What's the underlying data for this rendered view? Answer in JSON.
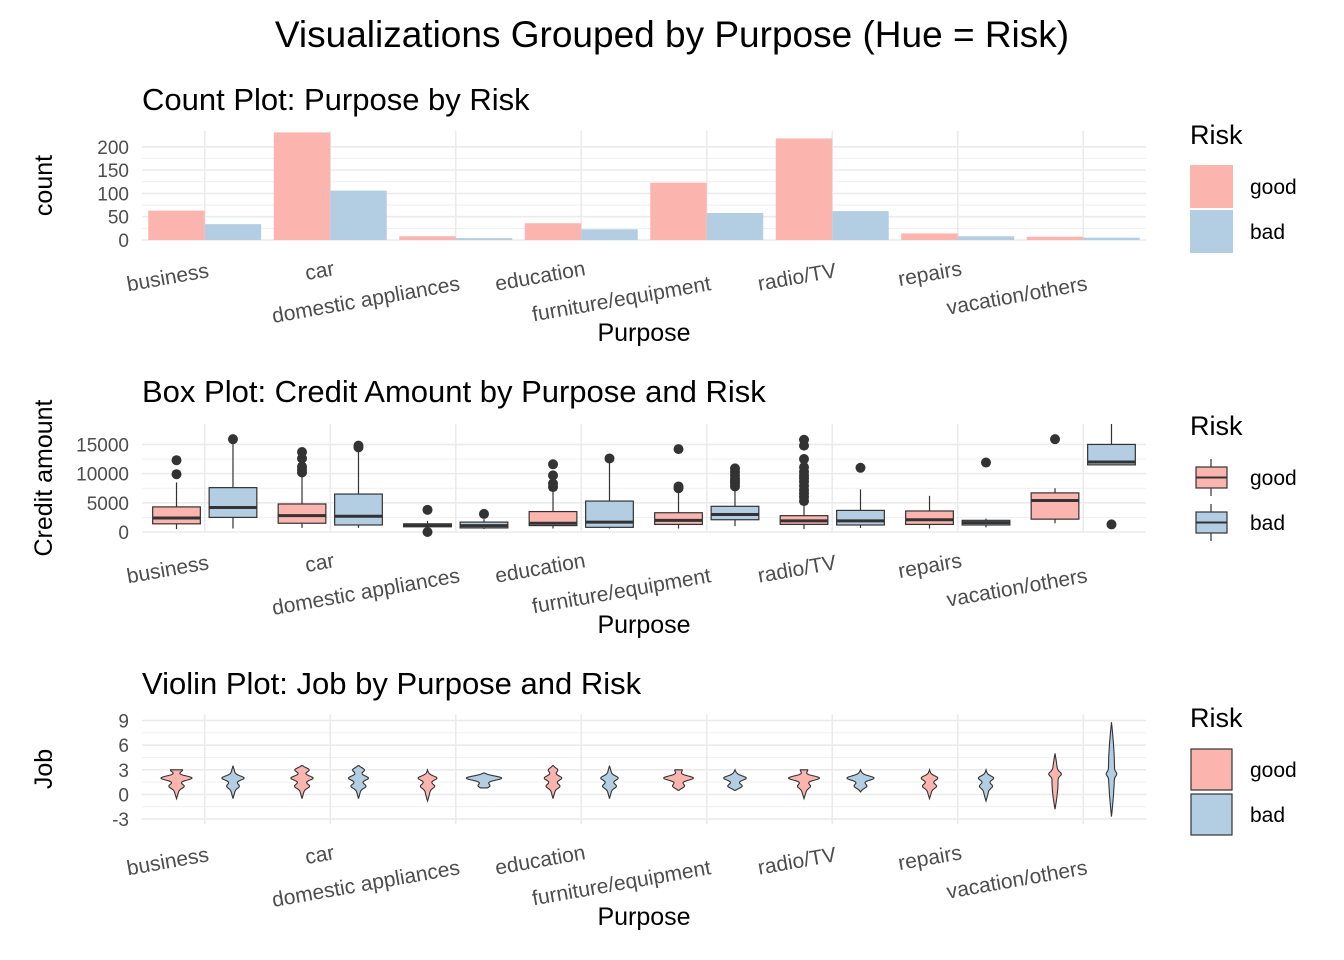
{
  "figure": {
    "title": "Visualizations Grouped by Purpose (Hue = Risk)"
  },
  "colors": {
    "good": "#FBB4AE",
    "bad": "#B3CDE3",
    "outline": "#333333",
    "grid": "#EBEBEB",
    "axis_text": "#4D4D4D",
    "text": "#000000"
  },
  "chart_data": [
    {
      "type": "bar",
      "title": "Count Plot: Purpose by Risk",
      "xlabel": "Purpose",
      "ylabel": "count",
      "categories": [
        "business",
        "car",
        "domestic appliances",
        "education",
        "furniture/equipment",
        "radio/TV",
        "repairs",
        "vacation/others"
      ],
      "yticks": [
        0,
        50,
        100,
        150,
        200
      ],
      "ylim": [
        0,
        234
      ],
      "series": [
        {
          "name": "good",
          "values": [
            63,
            231,
            8,
            36,
            123,
            218,
            14,
            7
          ]
        },
        {
          "name": "bad",
          "values": [
            34,
            106,
            4,
            23,
            58,
            62,
            8,
            5
          ]
        }
      ],
      "legend": {
        "title": "Risk",
        "entries": [
          "good",
          "bad"
        ],
        "position": "right"
      },
      "grid": true
    },
    {
      "type": "box",
      "title": "Box Plot: Credit Amount by Purpose and Risk",
      "xlabel": "Purpose",
      "ylabel": "Credit amount",
      "categories": [
        "business",
        "car",
        "domestic appliances",
        "education",
        "furniture/equipment",
        "radio/TV",
        "repairs",
        "vacation/others"
      ],
      "yticks": [
        0,
        5000,
        10000,
        15000
      ],
      "ylim": [
        0,
        18500
      ],
      "series": [
        {
          "name": "good",
          "boxes": [
            {
              "min": 500,
              "q1": 1400,
              "median": 2400,
              "q3": 4300,
              "max": 8500,
              "outliers": [
                9900,
                12300
              ]
            },
            {
              "min": 700,
              "q1": 1500,
              "median": 2800,
              "q3": 4800,
              "max": 9500,
              "outliers": [
                10200,
                10700,
                11200,
                12600,
                13700
              ]
            },
            {
              "min": 600,
              "q1": 900,
              "median": 1100,
              "q3": 1400,
              "max": 1900,
              "outliers": [
                0,
                3800
              ]
            },
            {
              "min": 600,
              "q1": 1100,
              "median": 1500,
              "q3": 3500,
              "max": 7000,
              "outliers": [
                7700,
                8300,
                9700,
                11600
              ]
            },
            {
              "min": 600,
              "q1": 1300,
              "median": 2000,
              "q3": 3300,
              "max": 7000,
              "outliers": [
                7500,
                7800,
                14200
              ]
            },
            {
              "min": 500,
              "q1": 1300,
              "median": 1900,
              "q3": 2800,
              "max": 4800,
              "outliers": [
                5300,
                6000,
                6600,
                7200,
                7900,
                8600,
                9200,
                9700,
                10300,
                11100,
                12500,
                14800,
                15800
              ]
            },
            {
              "min": 600,
              "q1": 1300,
              "median": 2100,
              "q3": 3600,
              "max": 6200,
              "outliers": []
            },
            {
              "min": 1500,
              "q1": 2200,
              "median": 5400,
              "q3": 6700,
              "max": 7500,
              "outliers": [
                15900
              ]
            }
          ]
        },
        {
          "name": "bad",
          "boxes": [
            {
              "min": 600,
              "q1": 2500,
              "median": 4200,
              "q3": 7600,
              "max": 15500,
              "outliers": [
                15900
              ]
            },
            {
              "min": 700,
              "q1": 1200,
              "median": 2700,
              "q3": 6500,
              "max": 14000,
              "outliers": [
                14500,
                14800
              ]
            },
            {
              "min": 500,
              "q1": 700,
              "median": 1100,
              "q3": 1700,
              "max": 2200,
              "outliers": [
                3100
              ]
            },
            {
              "min": 600,
              "q1": 800,
              "median": 1700,
              "q3": 5300,
              "max": 12000,
              "outliers": [
                12600
              ]
            },
            {
              "min": 1000,
              "q1": 2100,
              "median": 3000,
              "q3": 4400,
              "max": 7200,
              "outliers": [
                7800,
                8300,
                8700,
                9100,
                9700,
                10300,
                10900
              ]
            },
            {
              "min": 700,
              "q1": 1200,
              "median": 1900,
              "q3": 3700,
              "max": 7300,
              "outliers": [
                11000
              ]
            },
            {
              "min": 800,
              "q1": 1200,
              "median": 1600,
              "q3": 2000,
              "max": 2300,
              "outliers": [
                11900
              ]
            },
            {
              "min": 11500,
              "q1": 11500,
              "median": 12000,
              "q3": 15000,
              "max": 18500,
              "outliers": [
                1300
              ]
            }
          ]
        }
      ],
      "legend": {
        "title": "Risk",
        "entries": [
          "good",
          "bad"
        ],
        "position": "right"
      },
      "grid": true
    },
    {
      "type": "violin",
      "title": "Violin Plot: Job by Purpose and Risk",
      "xlabel": "Purpose",
      "ylabel": "Job",
      "categories": [
        "business",
        "car",
        "domestic appliances",
        "education",
        "furniture/equipment",
        "radio/TV",
        "repairs",
        "vacation/others"
      ],
      "yticks": [
        -3,
        0,
        3,
        6,
        9
      ],
      "ylim": [
        -3.6,
        9.8
      ],
      "series": [
        {
          "name": "good",
          "violins": [
            {
              "min": -0.5,
              "max": 3.0,
              "peaks": [
                [
                  2,
                  22
                ],
                [
                  3,
                  10
                ],
                [
                  1,
                  8
                ]
              ]
            },
            {
              "min": -0.5,
              "max": 3.5,
              "peaks": [
                [
                  2,
                  14
                ],
                [
                  3,
                  10
                ],
                [
                  1,
                  8
                ]
              ]
            },
            {
              "min": -0.8,
              "max": 3.0,
              "peaks": [
                [
                  2,
                  12
                ],
                [
                  1,
                  7
                ]
              ]
            },
            {
              "min": -0.5,
              "max": 3.5,
              "peaks": [
                [
                  2,
                  10
                ],
                [
                  1,
                  7
                ],
                [
                  3,
                  6
                ]
              ]
            },
            {
              "min": 0.5,
              "max": 3.0,
              "peaks": [
                [
                  2,
                  20
                ],
                [
                  1,
                  7
                ],
                [
                  3,
                  6
                ]
              ]
            },
            {
              "min": -0.5,
              "max": 3.0,
              "peaks": [
                [
                  2,
                  22
                ],
                [
                  3,
                  6
                ],
                [
                  1,
                  6
                ]
              ]
            },
            {
              "min": -0.5,
              "max": 3.0,
              "peaks": [
                [
                  2,
                  10
                ],
                [
                  1,
                  7
                ]
              ]
            },
            {
              "min": -1.8,
              "max": 5.0,
              "peaks": [
                [
                  2.5,
                  6
                ]
              ]
            }
          ]
        },
        {
          "name": "bad",
          "violins": [
            {
              "min": -0.5,
              "max": 3.5,
              "peaks": [
                [
                  2,
                  14
                ],
                [
                  1,
                  6
                ]
              ]
            },
            {
              "min": -0.5,
              "max": 3.5,
              "peaks": [
                [
                  2,
                  12
                ],
                [
                  3,
                  8
                ],
                [
                  1,
                  8
                ]
              ]
            },
            {
              "min": 0.8,
              "max": 2.6,
              "peaks": [
                [
                  2,
                  25
                ],
                [
                  1,
                  8
                ]
              ]
            },
            {
              "min": -0.5,
              "max": 3.5,
              "peaks": [
                [
                  2,
                  10
                ],
                [
                  1,
                  7
                ]
              ]
            },
            {
              "min": 0.5,
              "max": 3.0,
              "peaks": [
                [
                  2,
                  14
                ],
                [
                  1,
                  9
                ]
              ]
            },
            {
              "min": 0.3,
              "max": 3.0,
              "peaks": [
                [
                  2,
                  18
                ],
                [
                  1,
                  7
                ]
              ]
            },
            {
              "min": -0.8,
              "max": 3.0,
              "peaks": [
                [
                  2,
                  9
                ],
                [
                  1,
                  6
                ]
              ]
            },
            {
              "min": -2.7,
              "max": 8.8,
              "peaks": [
                [
                  2.5,
                  4
                ]
              ]
            }
          ]
        }
      ],
      "legend": {
        "title": "Risk",
        "entries": [
          "good",
          "bad"
        ],
        "position": "right"
      },
      "grid": true
    }
  ]
}
